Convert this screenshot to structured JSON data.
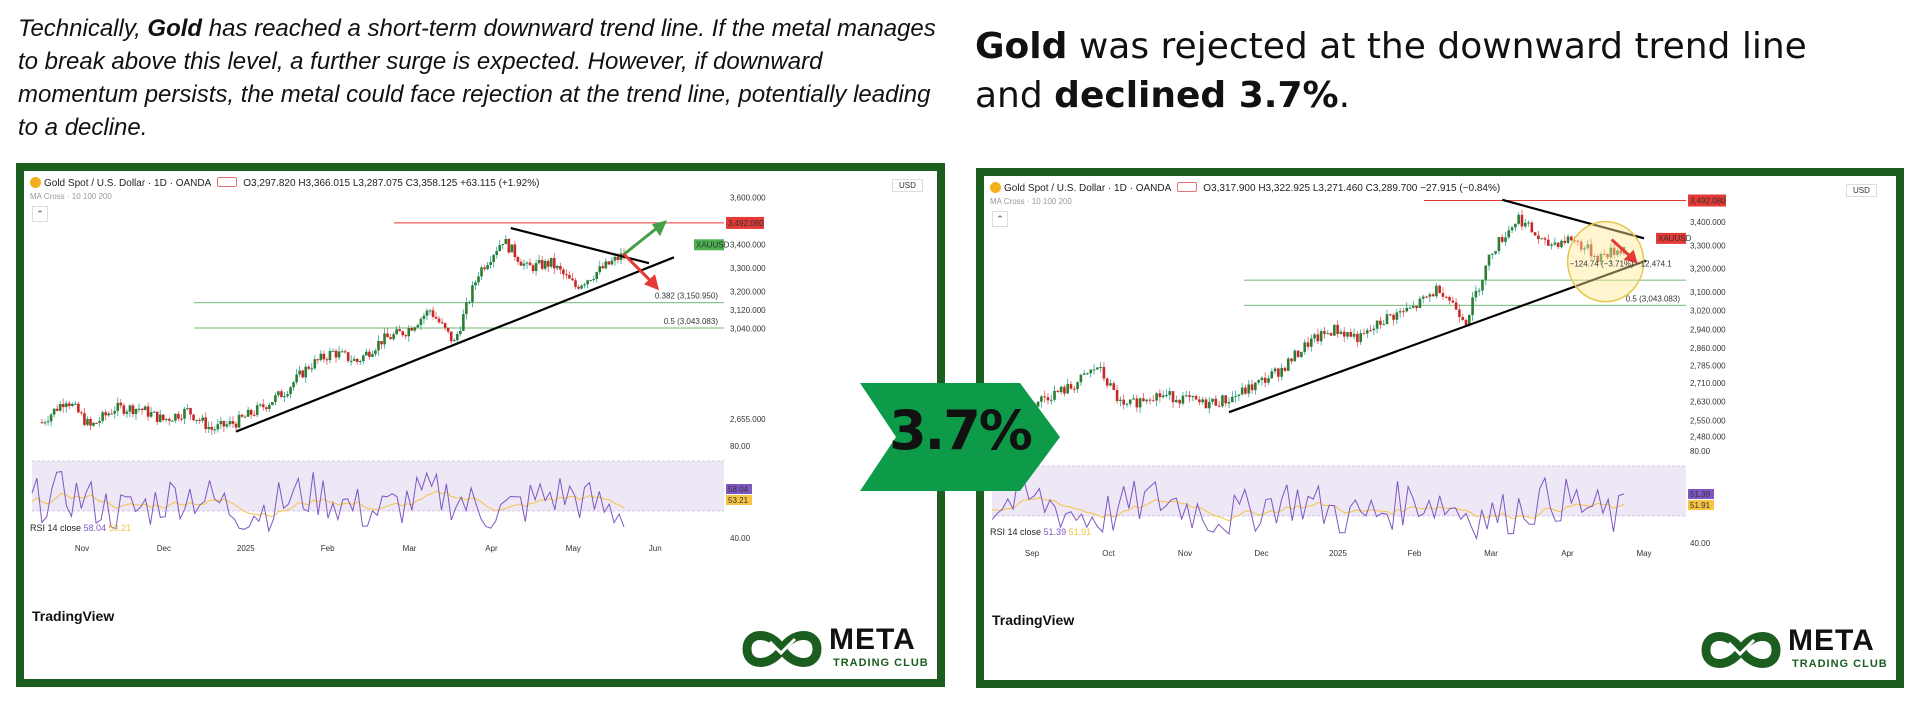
{
  "captions": {
    "left": {
      "p1": "Technically, ",
      "b1": "Gold",
      "p2": " has reached a short-term downward trend line. If the metal manages to break above this level, a further surge is expected. However, if downward momentum persists, the metal could face rejection at the trend line, potentially leading to a decline."
    },
    "right": {
      "b1": "Gold",
      "p1": " was rejected at the downward trend line and ",
      "b2": "declined 3.7%",
      "p2": "."
    }
  },
  "badge": {
    "text": "3.7%"
  },
  "colors": {
    "frame": "#1b5e20",
    "up": "#26a69a",
    "down": "#ef5350",
    "rsi": "#7e57c2",
    "rsi_ma": "#f6c343",
    "badge": "#0e9b49"
  },
  "chart_data": [
    {
      "type": "candlestick",
      "title": "Gold Spot / U.S. Dollar · 1D · OANDA",
      "ohlc_text": "O3,297.820 H3,366.015 L3,287.075 C3,358.125 +63.115 (+1.92%)",
      "indicator": "MA Cross · 10 100 200",
      "currency": "USD",
      "x_ticks": [
        "Nov",
        "Dec",
        "2025",
        "Feb",
        "Mar",
        "Apr",
        "May",
        "Jun"
      ],
      "y_ticks": [
        "3,600.000",
        "3,400.000",
        "3,300.000",
        "3,200.000",
        "3,120.000",
        "3,040.000",
        "2,655.000"
      ],
      "ylim": [
        2560,
        3620
      ],
      "price_line": {
        "value": 3492.08,
        "label": "3,492.080"
      },
      "symbol_tag": "XAUUSD",
      "fib_levels": [
        {
          "value": 3150.95,
          "label": "0.382 (3,150.950)"
        },
        {
          "value": 3043.083,
          "label": "0.5 (3,043.083)"
        }
      ],
      "x_points": [
        "Oct 15",
        "Oct 28",
        "Nov 8",
        "Nov 15",
        "Nov 22",
        "Dec 1",
        "Dec 10",
        "Dec 20",
        "Jan 2",
        "Jan 15",
        "Jan 28",
        "Feb 10",
        "Feb 21",
        "Mar 3",
        "Mar 14",
        "Mar 24",
        "Apr 3",
        "Apr 8",
        "Apr 15",
        "Apr 22",
        "Apr 30",
        "May 9",
        "May 15",
        "May 22",
        "May 28"
      ],
      "close_values": [
        2640,
        2740,
        2620,
        2700,
        2700,
        2650,
        2690,
        2610,
        2640,
        2700,
        2770,
        2880,
        2940,
        2900,
        2990,
        3030,
        3120,
        2980,
        3280,
        3420,
        3300,
        3320,
        3220,
        3290,
        3358
      ],
      "trend_lines": [
        "support from Jan 2025 low",
        "downward resistance from Apr high"
      ],
      "rsi": {
        "label": "RSI 14 close",
        "value": "58.04",
        "ma": "53.21",
        "ticks": [
          "80.00",
          "40.00"
        ]
      },
      "watermark": "TradingView"
    },
    {
      "type": "candlestick",
      "title": "Gold Spot / U.S. Dollar · 1D · OANDA",
      "ohlc_text": "O3,317.900 H3,322.925 L3,271.460 C3,289.700 −27.915 (−0.84%)",
      "indicator": "MA Cross · 10 100 200",
      "currency": "USD",
      "x_ticks": [
        "Sep",
        "Oct",
        "Nov",
        "Dec",
        "2025",
        "Feb",
        "Mar",
        "Apr",
        "May"
      ],
      "y_ticks": [
        "3,400.000",
        "3,300.000",
        "3,200.000",
        "3,100.000",
        "3,020.000",
        "2,940.000",
        "2,860.000",
        "2,785.000",
        "2,710.000",
        "2,630.000",
        "2,550.000",
        "2,480.000"
      ],
      "ylim": [
        2440,
        3520
      ],
      "price_line": {
        "value": 3492.08,
        "label": "3,492.080"
      },
      "symbol_tag": "XAUUSD",
      "fib_levels": [
        {
          "value": 3150.95,
          "label": ""
        },
        {
          "value": 3043.083,
          "label": "0.5 (3,043.083)"
        }
      ],
      "measure_label": "−124.74 (−3.71%) −12,474.1",
      "x_points": [
        "Sep 1",
        "Sep 15",
        "Oct 1",
        "Oct 15",
        "Oct 30",
        "Nov 10",
        "Nov 20",
        "Dec 5",
        "Dec 20",
        "Jan 2",
        "Jan 15",
        "Jan 28",
        "Feb 10",
        "Feb 21",
        "Mar 3",
        "Mar 14",
        "Mar 24",
        "Apr 3",
        "Apr 8",
        "Apr 15",
        "Apr 22",
        "Apr 30",
        "May 9",
        "May 15",
        "May 22"
      ],
      "close_values": [
        2500,
        2580,
        2650,
        2690,
        2780,
        2600,
        2660,
        2650,
        2620,
        2640,
        2700,
        2770,
        2880,
        2940,
        2900,
        2990,
        3030,
        3120,
        2980,
        3280,
        3420,
        3300,
        3330,
        3250,
        3289
      ],
      "trend_lines": [
        "support from Dec 2024 low",
        "downward resistance from Apr high"
      ],
      "rsi": {
        "label": "RSI 14 close",
        "value": "51.39",
        "ma": "51.91",
        "ticks": [
          "80.00",
          "40.00"
        ]
      },
      "watermark": "TradingView"
    }
  ],
  "logo": {
    "title": "META",
    "subtitle": "TRADING CLUB"
  }
}
